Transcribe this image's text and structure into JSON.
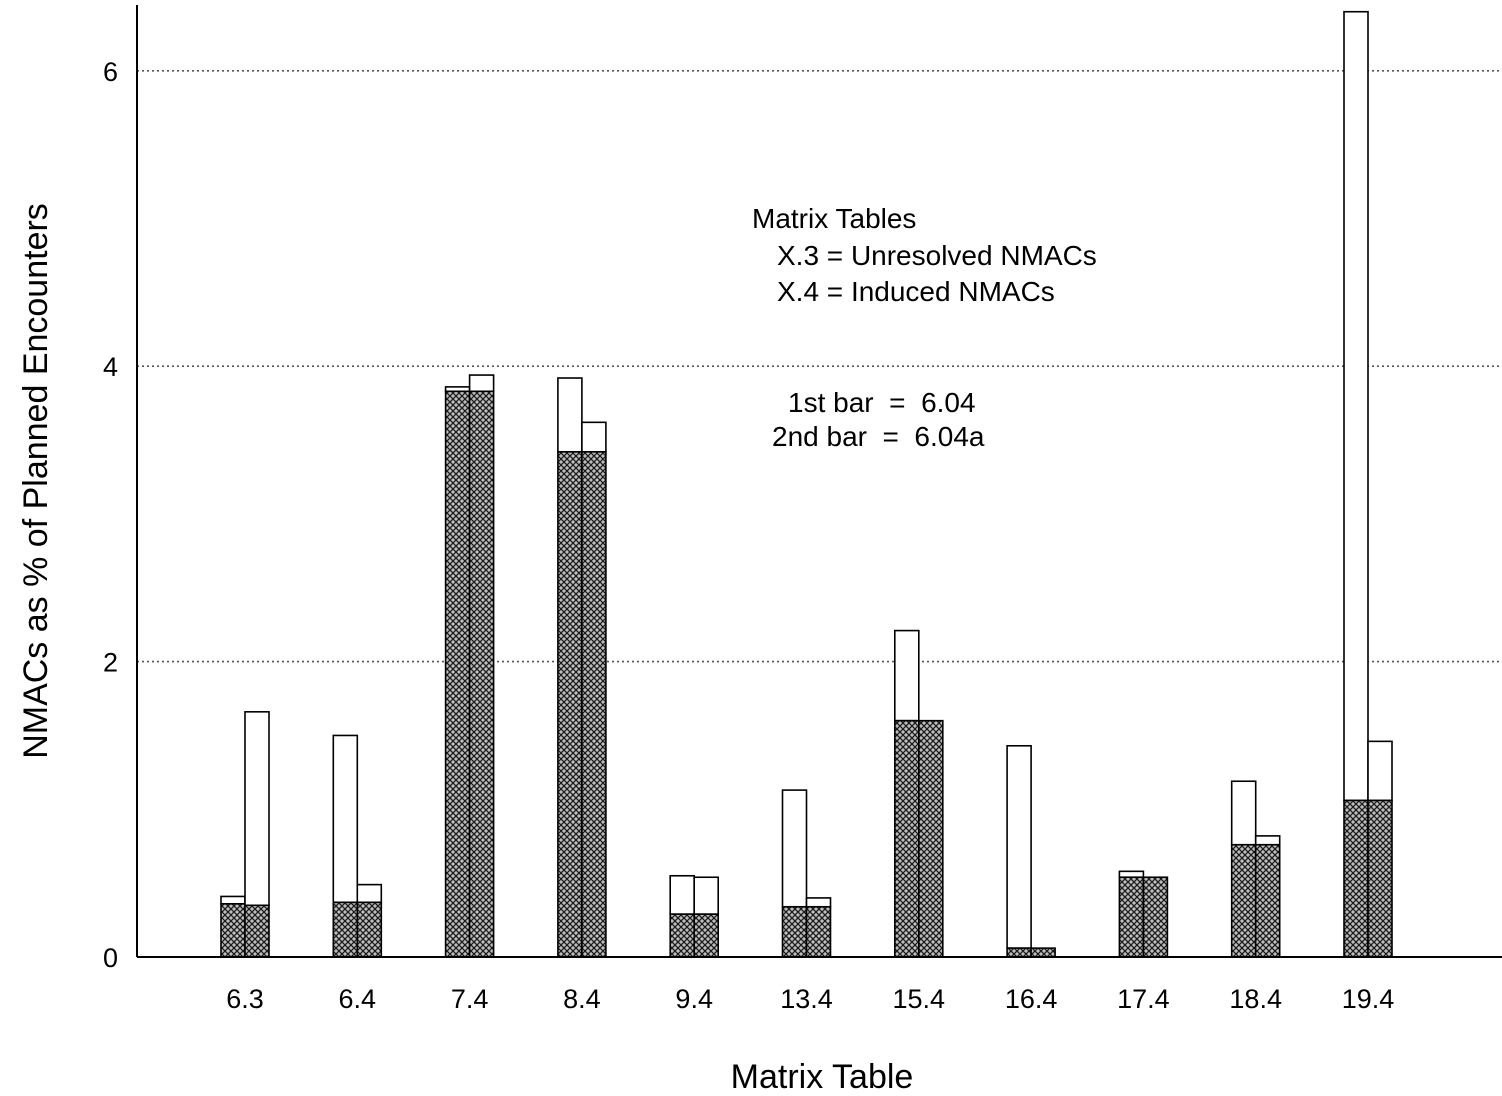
{
  "chart_data": {
    "type": "bar",
    "title": "",
    "xlabel": "Matrix Table",
    "ylabel": "NMACs as % of Planned Encounters",
    "ylim": [
      0,
      6.4
    ],
    "yticks": [
      0,
      2,
      4,
      6
    ],
    "grid": "horizontal dotted at 2, 4, 6",
    "categories": [
      "6.3",
      "6.4",
      "7.4",
      "8.4",
      "9.4",
      "13.4",
      "15.4",
      "16.4",
      "17.4",
      "18.4",
      "19.4"
    ],
    "stack_components": [
      {
        "part": "lower",
        "fill": "crosshatch"
      },
      {
        "part": "upper",
        "fill": "white"
      }
    ],
    "series": [
      {
        "name": "1st bar",
        "lower": [
          0.36,
          0.37,
          3.83,
          3.42,
          0.29,
          0.34,
          1.6,
          0.06,
          0.54,
          0.76,
          1.06
        ],
        "total": [
          0.41,
          1.5,
          3.86,
          3.92,
          0.55,
          1.13,
          2.21,
          1.43,
          0.58,
          1.19,
          6.4
        ]
      },
      {
        "name": "2nd bar",
        "lower": [
          0.35,
          0.37,
          3.83,
          3.42,
          0.29,
          0.34,
          1.6,
          0.06,
          0.54,
          0.76,
          1.06
        ],
        "total": [
          1.66,
          0.49,
          3.94,
          3.62,
          0.54,
          0.4,
          1.6,
          0.06,
          0.54,
          0.82,
          1.46
        ]
      }
    ],
    "annotation": {
      "heading": "Matrix Tables",
      "line1": "X.3 = Unresolved NMACs",
      "line2": "X.4 = Induced NMACs",
      "bar1": "1st bar  =  6.04",
      "bar2": "2nd bar  =  6.04a"
    }
  }
}
